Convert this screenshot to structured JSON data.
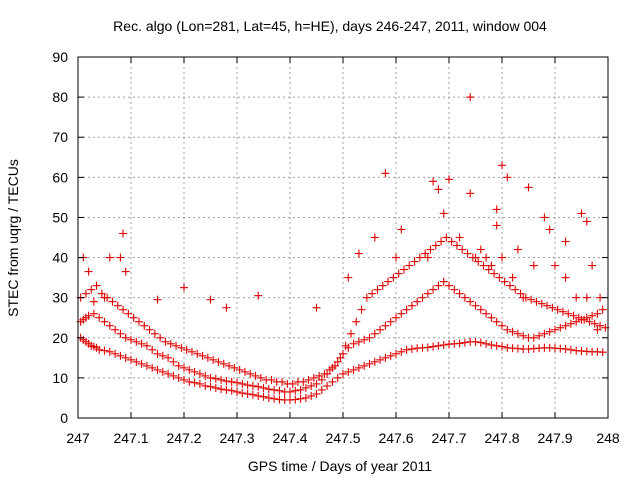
{
  "chart_data": {
    "type": "scatter",
    "title": "Rec. algo (Lon=281, Lat=45, h=HE), days 246-247, 2011, window 004",
    "xlabel": "GPS time / Days of year 2011",
    "ylabel": "STEC from uqrg / TECUs",
    "xlim": [
      247,
      248
    ],
    "ylim": [
      0,
      90
    ],
    "xticks": [
      "247",
      "247.1",
      "247.2",
      "247.3",
      "247.4",
      "247.5",
      "247.6",
      "247.7",
      "247.8",
      "247.9",
      "248"
    ],
    "yticks": [
      "0",
      "10",
      "20",
      "30",
      "40",
      "50",
      "60",
      "70",
      "80",
      "90"
    ],
    "grid": true,
    "legend": "none",
    "marker": "plus",
    "color": "#e00000",
    "series": [
      {
        "x": [
          247.005,
          247.01,
          247.015,
          247.02,
          247.025,
          247.03,
          247.035,
          247.04,
          247.05,
          247.06,
          247.07,
          247.08,
          247.09,
          247.1,
          247.11,
          247.12,
          247.13,
          247.14,
          247.15,
          247.16,
          247.17,
          247.18,
          247.19,
          247.2,
          247.21,
          247.22,
          247.23,
          247.24,
          247.25,
          247.26,
          247.27,
          247.28,
          247.29,
          247.3,
          247.31,
          247.32,
          247.33,
          247.34,
          247.35,
          247.36,
          247.37,
          247.38,
          247.39,
          247.4,
          247.41,
          247.42,
          247.43,
          247.44,
          247.45,
          247.46,
          247.47,
          247.48,
          247.49,
          247.5,
          247.51,
          247.52,
          247.53,
          247.54,
          247.55,
          247.56,
          247.57,
          247.58,
          247.59,
          247.6,
          247.61,
          247.62,
          247.63,
          247.64,
          247.65,
          247.66,
          247.67,
          247.68,
          247.69,
          247.7,
          247.71,
          247.72,
          247.73,
          247.74,
          247.75,
          247.76,
          247.77,
          247.78,
          247.79,
          247.8,
          247.81,
          247.82,
          247.83,
          247.84,
          247.85,
          247.86,
          247.87,
          247.88,
          247.89,
          247.9,
          247.91,
          247.92,
          247.93,
          247.94,
          247.95,
          247.96,
          247.97,
          247.98,
          247.99
        ],
        "y": [
          20,
          19.5,
          19,
          18.5,
          18,
          17.8,
          17.5,
          17,
          16.8,
          16.5,
          16,
          15.5,
          15,
          14.5,
          14,
          13.5,
          13,
          12.5,
          12,
          11.5,
          11,
          10.5,
          10,
          9.5,
          9,
          8.8,
          8.5,
          8,
          7.8,
          7.5,
          7.2,
          7,
          6.8,
          6.5,
          6.2,
          6,
          5.8,
          5.5,
          5.3,
          5,
          4.8,
          4.6,
          4.5,
          4.5,
          4.6,
          4.8,
          5,
          5.5,
          6,
          7,
          8,
          9,
          10,
          11,
          11.5,
          12,
          12.5,
          13,
          13.5,
          14,
          14.5,
          15,
          15.5,
          16,
          16.5,
          17,
          17.2,
          17.4,
          17.5,
          17.6,
          17.8,
          18,
          18.2,
          18.4,
          18.5,
          18.6,
          18.8,
          19,
          19,
          18.8,
          18.5,
          18.2,
          18,
          17.8,
          17.5,
          17.4,
          17.3,
          17.2,
          17.2,
          17.3,
          17.4,
          17.5,
          17.5,
          17.4,
          17.3,
          17.2,
          17,
          16.8,
          16.7,
          16.6,
          16.5,
          16.5,
          16.4
        ]
      },
      {
        "x": [
          247.005,
          247.01,
          247.015,
          247.02,
          247.03,
          247.04,
          247.05,
          247.06,
          247.07,
          247.08,
          247.09,
          247.1,
          247.11,
          247.12,
          247.13,
          247.14,
          247.15,
          247.16,
          247.17,
          247.18,
          247.19,
          247.2,
          247.21,
          247.22,
          247.23,
          247.24,
          247.25,
          247.26,
          247.27,
          247.28,
          247.29,
          247.3,
          247.31,
          247.32,
          247.33,
          247.34,
          247.35,
          247.36,
          247.37,
          247.38,
          247.39,
          247.4,
          247.41,
          247.42,
          247.43,
          247.44,
          247.45,
          247.46,
          247.47,
          247.48,
          247.49,
          247.5,
          247.51,
          247.52,
          247.53,
          247.54,
          247.55,
          247.56,
          247.57,
          247.58,
          247.59,
          247.6,
          247.61,
          247.62,
          247.63,
          247.64,
          247.65,
          247.66,
          247.67,
          247.68,
          247.69,
          247.7,
          247.71,
          247.72,
          247.73,
          247.74,
          247.75,
          247.76,
          247.77,
          247.78,
          247.79,
          247.8,
          247.81,
          247.82,
          247.83,
          247.84,
          247.85,
          247.86,
          247.87,
          247.88,
          247.89,
          247.9,
          247.91,
          247.92,
          247.93,
          247.94,
          247.95,
          247.96,
          247.97,
          247.98,
          247.99
        ],
        "y": [
          24,
          24.5,
          25,
          25.5,
          26,
          25,
          24,
          23,
          22,
          21,
          20,
          19.5,
          19,
          18.5,
          18,
          17,
          16,
          15.5,
          15,
          14,
          13,
          12.5,
          12,
          11.5,
          11,
          10.5,
          10,
          9.8,
          9.5,
          9.2,
          9,
          8.8,
          8.5,
          8.2,
          8,
          7.8,
          7.5,
          7.2,
          7,
          6.8,
          6.5,
          6.5,
          6.8,
          7,
          7.5,
          8,
          8.5,
          9.5,
          11,
          12.5,
          14,
          16,
          17.5,
          18.5,
          19,
          19.5,
          20,
          21,
          22,
          23,
          24,
          25,
          26,
          27,
          28,
          29,
          30,
          31,
          32,
          33,
          34,
          33,
          32,
          31,
          30,
          29,
          28,
          27,
          26,
          25,
          24,
          23,
          22,
          21.5,
          21,
          20.5,
          20,
          20,
          20.5,
          21,
          21.5,
          22,
          22.5,
          23,
          23.5,
          24,
          24.5,
          25,
          25.5,
          26,
          27
        ]
      },
      {
        "x": [
          247.005,
          247.015,
          247.025,
          247.035,
          247.045,
          247.055,
          247.065,
          247.075,
          247.085,
          247.095,
          247.105,
          247.115,
          247.125,
          247.135,
          247.145,
          247.155,
          247.165,
          247.175,
          247.185,
          247.195,
          247.205,
          247.215,
          247.225,
          247.235,
          247.245,
          247.255,
          247.265,
          247.275,
          247.285,
          247.295,
          247.305,
          247.315,
          247.325,
          247.335,
          247.345,
          247.355,
          247.365,
          247.375,
          247.385,
          247.395,
          247.405,
          247.415,
          247.425,
          247.435,
          247.445,
          247.455,
          247.465,
          247.475,
          247.485,
          247.495,
          247.505,
          247.515,
          247.525,
          247.535,
          247.545,
          247.555,
          247.565,
          247.575,
          247.585,
          247.595,
          247.605,
          247.615,
          247.625,
          247.635,
          247.645,
          247.655,
          247.665,
          247.675,
          247.685,
          247.695,
          247.705,
          247.715,
          247.725,
          247.735,
          247.745,
          247.755,
          247.765,
          247.775,
          247.785,
          247.795,
          247.805,
          247.815,
          247.825,
          247.835,
          247.845,
          247.855,
          247.865,
          247.875,
          247.885,
          247.895,
          247.905,
          247.915,
          247.925,
          247.935,
          247.945,
          247.955,
          247.965,
          247.975,
          247.985,
          247.995
        ],
        "y": [
          30,
          31,
          32,
          33,
          31,
          30,
          29,
          28,
          27,
          26,
          25,
          24,
          23,
          22,
          21,
          20,
          19,
          18.5,
          18,
          17.5,
          17,
          16.5,
          16,
          15.5,
          15,
          14.5,
          14,
          13.5,
          13,
          12.5,
          12,
          11.5,
          11,
          10.5,
          10,
          9.5,
          9.5,
          9,
          9,
          8.5,
          8.5,
          9,
          9,
          9.5,
          10,
          10.5,
          11,
          12,
          13,
          15,
          18,
          21,
          24,
          27,
          30,
          31,
          32,
          33,
          34,
          35,
          36,
          37,
          38,
          39,
          40,
          41,
          42,
          43,
          44,
          45,
          44,
          43,
          42,
          41,
          40,
          39,
          38,
          37,
          36,
          35,
          34,
          33,
          32,
          31,
          30,
          29.5,
          29,
          28.5,
          28,
          27.5,
          27,
          26.5,
          26,
          25.5,
          25,
          24.5,
          24,
          23.5,
          23,
          22.5
        ]
      },
      {
        "x": [
          247.01,
          247.02,
          247.03,
          247.05,
          247.06,
          247.08,
          247.085,
          247.09,
          247.15,
          247.2,
          247.25,
          247.28,
          247.34,
          247.45,
          247.51,
          247.53,
          247.56,
          247.58,
          247.6,
          247.61,
          247.66,
          247.67,
          247.68,
          247.69,
          247.7,
          247.72,
          247.74,
          247.79,
          247.8,
          247.81,
          247.83,
          247.85,
          247.88,
          247.89,
          247.92,
          247.95,
          247.96,
          247.97,
          247.985
        ],
        "y": [
          40,
          36.5,
          29,
          30,
          40,
          40,
          46,
          36.5,
          29.5,
          32.5,
          29.5,
          27.5,
          30.5,
          27.5,
          35,
          41,
          45,
          61,
          40,
          47,
          40,
          59,
          57,
          51,
          59.5,
          45,
          56,
          52,
          63,
          60,
          42,
          57.5,
          50,
          47,
          44,
          51,
          49,
          38,
          30
        ]
      },
      {
        "x": [
          247.74,
          247.75,
          247.76,
          247.77,
          247.78,
          247.79,
          247.8,
          247.82,
          247.84,
          247.86,
          247.9,
          247.92,
          247.94,
          247.96,
          247.98
        ],
        "y": [
          80,
          40,
          42,
          40,
          38,
          48,
          40,
          35,
          30,
          38,
          38,
          35,
          30,
          30,
          22
        ]
      }
    ]
  }
}
